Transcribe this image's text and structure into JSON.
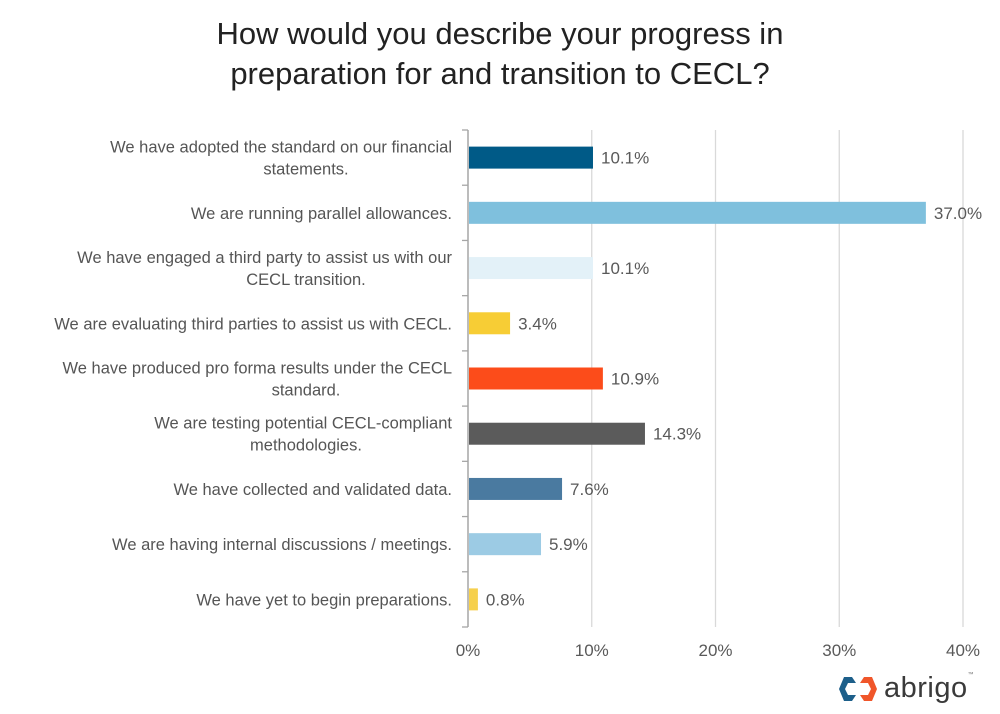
{
  "chart_data": {
    "type": "bar",
    "orientation": "horizontal",
    "title": "How would you describe your progress in preparation for and transition to CECL?",
    "title_lines": [
      "How would you describe your progress in",
      "preparation for and transition to CECL?"
    ],
    "categories": [
      [
        "We have adopted the standard on our financial",
        "statements."
      ],
      [
        "We are running parallel allowances."
      ],
      [
        "We have engaged a third party to assist us with our",
        "CECL transition."
      ],
      [
        "We are evaluating third parties to assist us with CECL."
      ],
      [
        "We have produced pro forma results under the CECL",
        "standard."
      ],
      [
        "We are testing potential CECL-compliant",
        "methodologies."
      ],
      [
        "We have collected and validated data."
      ],
      [
        "We are having internal discussions / meetings."
      ],
      [
        "We have yet to begin preparations."
      ]
    ],
    "values": [
      10.1,
      37.0,
      10.1,
      3.4,
      10.9,
      14.3,
      7.6,
      5.9,
      0.8
    ],
    "data_labels": [
      "10.1%",
      "37.0%",
      "10.1%",
      "3.4%",
      "10.9%",
      "14.3%",
      "7.6%",
      "5.9%",
      "0.8%"
    ],
    "colors": [
      "#005a87",
      "#7fc0dd",
      "#e3f1f8",
      "#f7cd35",
      "#fc4c1a",
      "#5b5b5b",
      "#4a7aa0",
      "#9ccbe4",
      "#f6d04d"
    ],
    "xlim": [
      0,
      40
    ],
    "xticks": [
      0,
      10,
      20,
      30,
      40
    ],
    "xtick_labels": [
      "0%",
      "10%",
      "20%",
      "30%",
      "40%"
    ],
    "grid": true,
    "legend": "none",
    "xlabel": "",
    "ylabel": ""
  },
  "logo": {
    "text": "abrigo",
    "tm": "™",
    "colors": [
      "#1d5f8a",
      "#f0562a"
    ]
  }
}
